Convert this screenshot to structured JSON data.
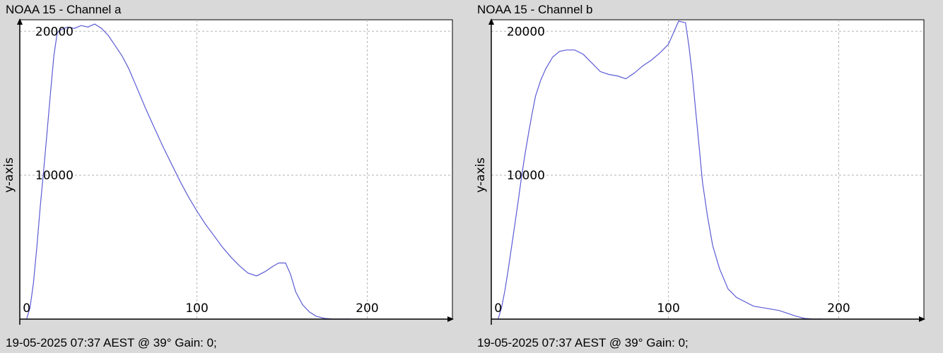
{
  "charts": [
    {
      "title": "NOAA 15 - Channel a",
      "footer": "19-05-2025 07:37 AEST @ 39° Gain: 0;",
      "chart_data": {
        "type": "line",
        "ylabel": "y-axis",
        "xlabel": "",
        "xlim": [
          -4,
          250
        ],
        "ylim": [
          0,
          20800
        ],
        "x_ticks": [
          0,
          100,
          200
        ],
        "y_ticks": [
          10000,
          20000
        ],
        "grid": true,
        "line_color": "#5b5bd6",
        "series": [
          {
            "x": [
              0,
              2,
              4,
              6,
              8,
              10,
              12,
              14,
              16,
              18,
              20,
              24,
              28,
              32,
              36,
              40,
              44,
              48,
              52,
              56,
              60,
              65,
              70,
              75,
              80,
              85,
              90,
              95,
              100,
              105,
              110,
              115,
              120,
              125,
              130,
              135,
              140,
              145,
              148,
              152,
              155,
              158,
              162,
              166,
              170,
              175,
              180,
              185,
              190
            ],
            "y": [
              0,
              800,
              2500,
              5000,
              7800,
              10300,
              13000,
              15700,
              18300,
              19900,
              20100,
              20300,
              20200,
              20400,
              20300,
              20500,
              20200,
              19700,
              19000,
              18300,
              17400,
              16000,
              14600,
              13300,
              12000,
              10800,
              9600,
              8500,
              7500,
              6600,
              5800,
              5000,
              4300,
              3700,
              3200,
              3000,
              3300,
              3700,
              3900,
              3900,
              3100,
              1900,
              1000,
              500,
              200,
              50,
              0,
              0,
              0
            ]
          }
        ]
      }
    },
    {
      "title": "NOAA 15 - Channel b",
      "footer": "19-05-2025 07:37 AEST @ 39° Gain: 0;",
      "chart_data": {
        "type": "line",
        "ylabel": "y-axis",
        "xlabel": "",
        "xlim": [
          -4,
          250
        ],
        "ylim": [
          0,
          20800
        ],
        "x_ticks": [
          0,
          100,
          200
        ],
        "y_ticks": [
          10000,
          20000
        ],
        "grid": true,
        "line_color": "#5b5bd6",
        "series": [
          {
            "x": [
              0,
              2,
              4,
              6,
              8,
              10,
              12,
              14,
              16,
              18,
              20,
              22,
              25,
              28,
              32,
              36,
              40,
              45,
              50,
              55,
              60,
              65,
              70,
              75,
              80,
              85,
              90,
              95,
              100,
              103,
              106,
              110,
              112,
              114,
              116,
              118,
              120,
              123,
              126,
              130,
              135,
              140,
              150,
              160,
              165,
              170,
              175,
              180,
              185,
              190
            ],
            "y": [
              0,
              800,
              2000,
              3500,
              5100,
              6700,
              8400,
              10100,
              11600,
              13000,
              14300,
              15500,
              16600,
              17400,
              18200,
              18600,
              18700,
              18700,
              18400,
              17800,
              17200,
              17000,
              16900,
              16700,
              17100,
              17600,
              18000,
              18500,
              19100,
              19900,
              20700,
              20600,
              19000,
              17000,
              14500,
              12000,
              9500,
              7100,
              5100,
              3500,
              2100,
              1500,
              900,
              700,
              600,
              400,
              200,
              50,
              0,
              0
            ]
          }
        ]
      }
    }
  ]
}
